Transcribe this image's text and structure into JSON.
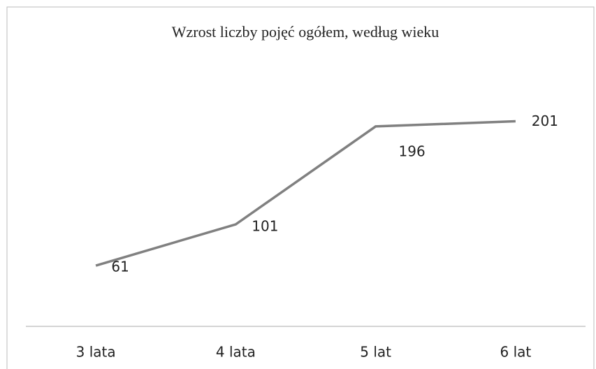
{
  "chart_data": {
    "type": "line",
    "title": "Wzrost liczby pojęć ogółem, według wieku",
    "categories": [
      "3 lata",
      "4 lata",
      "5 lat",
      "6 lat"
    ],
    "series": [
      {
        "color": "#808080",
        "values": [
          61,
          101,
          196,
          201
        ]
      }
    ]
  }
}
